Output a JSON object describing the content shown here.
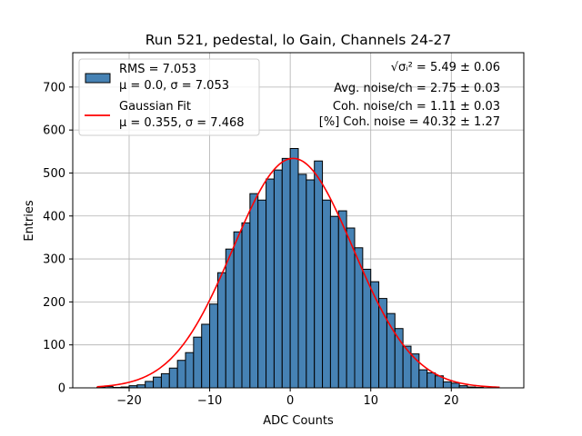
{
  "chart_data": {
    "type": "bar",
    "title": "Run 521, pedestal, lo Gain, Channels 24-27",
    "xlabel": "ADC Counts",
    "ylabel": "Entries",
    "xlim": [
      -27,
      29
    ],
    "ylim": [
      0,
      780
    ],
    "grid": true,
    "legend_position": "top-left",
    "x_ticks": [
      -20,
      -10,
      0,
      10,
      20
    ],
    "y_ticks": [
      0,
      100,
      200,
      300,
      400,
      500,
      600,
      700
    ],
    "bin_width": 1,
    "histogram": {
      "name": "RMS = 7.053",
      "stats_line": "μ = 0.0, σ = 7.053",
      "color": "#4682b4",
      "edge_color": "#000000",
      "bins": [
        {
          "x0": -24,
          "x1": -23,
          "count": 1
        },
        {
          "x0": -23,
          "x1": -22,
          "count": 3
        },
        {
          "x0": -22,
          "x1": -21,
          "count": 1
        },
        {
          "x0": -21,
          "x1": -20,
          "count": 2
        },
        {
          "x0": -20,
          "x1": -19,
          "count": 5
        },
        {
          "x0": -19,
          "x1": -18,
          "count": 7
        },
        {
          "x0": -18,
          "x1": -17,
          "count": 15
        },
        {
          "x0": -17,
          "x1": -16,
          "count": 25
        },
        {
          "x0": -16,
          "x1": -15,
          "count": 33
        },
        {
          "x0": -15,
          "x1": -14,
          "count": 46
        },
        {
          "x0": -14,
          "x1": -13,
          "count": 64
        },
        {
          "x0": -13,
          "x1": -12,
          "count": 82
        },
        {
          "x0": -12,
          "x1": -11,
          "count": 118
        },
        {
          "x0": -11,
          "x1": -10,
          "count": 148
        },
        {
          "x0": -10,
          "x1": -9,
          "count": 195
        },
        {
          "x0": -9,
          "x1": -8,
          "count": 268
        },
        {
          "x0": -8,
          "x1": -7,
          "count": 323
        },
        {
          "x0": -7,
          "x1": -6,
          "count": 363
        },
        {
          "x0": -6,
          "x1": -5,
          "count": 384
        },
        {
          "x0": -5,
          "x1": -4,
          "count": 452
        },
        {
          "x0": -4,
          "x1": -3,
          "count": 437
        },
        {
          "x0": -3,
          "x1": -2,
          "count": 486
        },
        {
          "x0": -2,
          "x1": -1,
          "count": 507
        },
        {
          "x0": -1,
          "x1": 0,
          "count": 534
        },
        {
          "x0": 0,
          "x1": 1,
          "count": 557
        },
        {
          "x0": 1,
          "x1": 2,
          "count": 497
        },
        {
          "x0": 2,
          "x1": 3,
          "count": 484
        },
        {
          "x0": 3,
          "x1": 4,
          "count": 528
        },
        {
          "x0": 4,
          "x1": 5,
          "count": 437
        },
        {
          "x0": 5,
          "x1": 6,
          "count": 399
        },
        {
          "x0": 6,
          "x1": 7,
          "count": 412
        },
        {
          "x0": 7,
          "x1": 8,
          "count": 372
        },
        {
          "x0": 8,
          "x1": 9,
          "count": 326
        },
        {
          "x0": 9,
          "x1": 10,
          "count": 276
        },
        {
          "x0": 10,
          "x1": 11,
          "count": 247
        },
        {
          "x0": 11,
          "x1": 12,
          "count": 208
        },
        {
          "x0": 12,
          "x1": 13,
          "count": 173
        },
        {
          "x0": 13,
          "x1": 14,
          "count": 138
        },
        {
          "x0": 14,
          "x1": 15,
          "count": 97
        },
        {
          "x0": 15,
          "x1": 16,
          "count": 79
        },
        {
          "x0": 16,
          "x1": 17,
          "count": 42
        },
        {
          "x0": 17,
          "x1": 18,
          "count": 35
        },
        {
          "x0": 18,
          "x1": 19,
          "count": 28
        },
        {
          "x0": 19,
          "x1": 20,
          "count": 14
        },
        {
          "x0": 20,
          "x1": 21,
          "count": 11
        },
        {
          "x0": 21,
          "x1": 22,
          "count": 5
        },
        {
          "x0": 22,
          "x1": 23,
          "count": 2
        },
        {
          "x0": 23,
          "x1": 24,
          "count": 1
        }
      ]
    },
    "fit": {
      "name": "Gaussian Fit",
      "stats_line": "μ = 0.355, σ = 7.468",
      "color": "#ff0000",
      "mu": 0.355,
      "sigma": 7.468,
      "amplitude": 534,
      "x_range": [
        -24,
        26
      ]
    },
    "annotations": [
      {
        "lead": "√σᵢ²",
        "text": " = 5.49 ± 0.06"
      },
      {
        "text": "Avg. noise/ch = 2.75 ± 0.03"
      },
      {
        "text": "Coh. noise/ch = 1.11 ± 0.03"
      },
      {
        "text": "[%] Coh. noise = 40.32 ± 1.27"
      }
    ]
  }
}
